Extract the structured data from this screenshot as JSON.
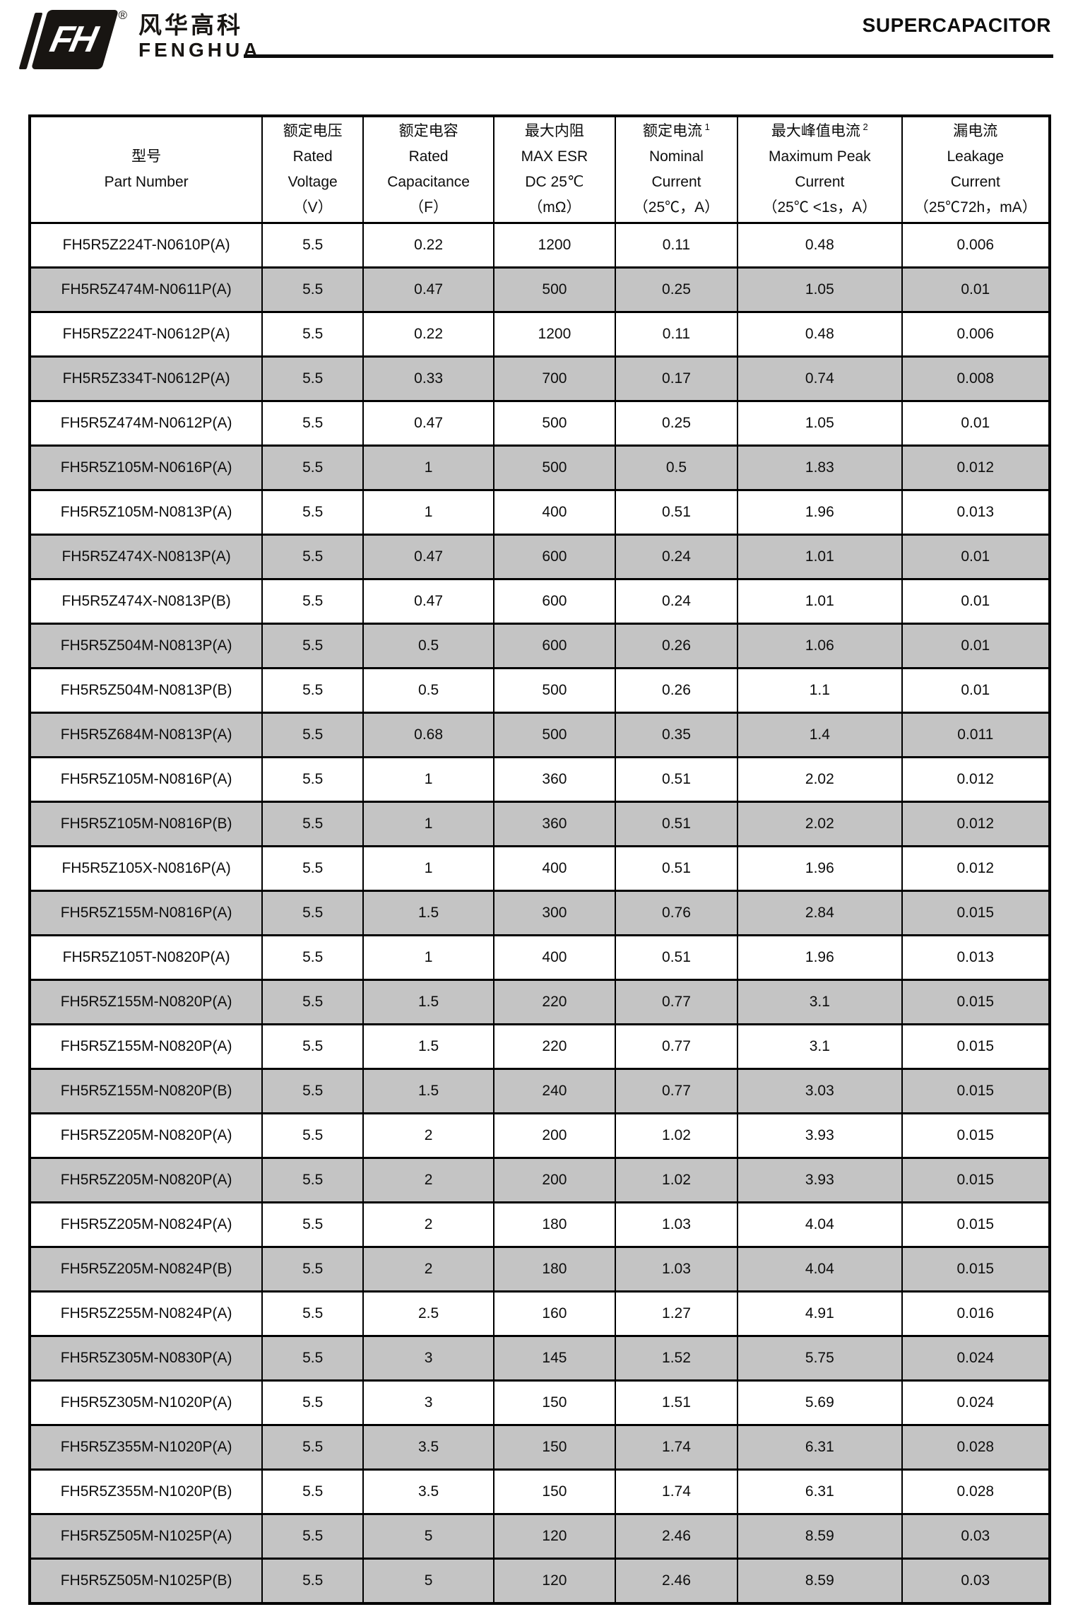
{
  "brand": {
    "mark": "FH",
    "registered": "®",
    "name_cn": "风华高科",
    "name_en": "FENGHUA"
  },
  "header": {
    "title": "SUPERCAPACITOR"
  },
  "colors": {
    "row_shade": "#c4c4c4",
    "border": "#000000",
    "logo": "#181512"
  },
  "table": {
    "columns": [
      {
        "lines": [
          "型号",
          "Part Number"
        ],
        "sup": ""
      },
      {
        "lines": [
          "额定电压",
          "Rated",
          "Voltage",
          "（V）"
        ],
        "sup": ""
      },
      {
        "lines": [
          "额定电容",
          "Rated",
          "Capacitance",
          "（F）"
        ],
        "sup": ""
      },
      {
        "lines": [
          "最大内阻",
          "MAX ESR",
          "DC 25℃",
          "（mΩ）"
        ],
        "sup": ""
      },
      {
        "lines": [
          "额定电流",
          "Nominal",
          "Current",
          "（25℃，A）"
        ],
        "sup": "1"
      },
      {
        "lines": [
          "最大峰值电流",
          "Maximum Peak",
          "Current",
          "（25℃ <1s，A）"
        ],
        "sup": "2"
      },
      {
        "lines": [
          "漏电流",
          "Leakage",
          "Current",
          "（25℃72h，mA）"
        ],
        "sup": ""
      }
    ],
    "rows": [
      {
        "shaded": false,
        "cells": [
          "FH5R5Z224T-N0610P(A)",
          "5.5",
          "0.22",
          "1200",
          "0.11",
          "0.48",
          "0.006"
        ]
      },
      {
        "shaded": true,
        "cells": [
          "FH5R5Z474M-N0611P(A)",
          "5.5",
          "0.47",
          "500",
          "0.25",
          "1.05",
          "0.01"
        ]
      },
      {
        "shaded": false,
        "cells": [
          "FH5R5Z224T-N0612P(A)",
          "5.5",
          "0.22",
          "1200",
          "0.11",
          "0.48",
          "0.006"
        ]
      },
      {
        "shaded": true,
        "cells": [
          "FH5R5Z334T-N0612P(A)",
          "5.5",
          "0.33",
          "700",
          "0.17",
          "0.74",
          "0.008"
        ]
      },
      {
        "shaded": false,
        "cells": [
          "FH5R5Z474M-N0612P(A)",
          "5.5",
          "0.47",
          "500",
          "0.25",
          "1.05",
          "0.01"
        ]
      },
      {
        "shaded": true,
        "cells": [
          "FH5R5Z105M-N0616P(A)",
          "5.5",
          "1",
          "500",
          "0.5",
          "1.83",
          "0.012"
        ]
      },
      {
        "shaded": false,
        "cells": [
          "FH5R5Z105M-N0813P(A)",
          "5.5",
          "1",
          "400",
          "0.51",
          "1.96",
          "0.013"
        ]
      },
      {
        "shaded": true,
        "cells": [
          "FH5R5Z474X-N0813P(A)",
          "5.5",
          "0.47",
          "600",
          "0.24",
          "1.01",
          "0.01"
        ]
      },
      {
        "shaded": false,
        "cells": [
          "FH5R5Z474X-N0813P(B)",
          "5.5",
          "0.47",
          "600",
          "0.24",
          "1.01",
          "0.01"
        ]
      },
      {
        "shaded": true,
        "cells": [
          "FH5R5Z504M-N0813P(A)",
          "5.5",
          "0.5",
          "600",
          "0.26",
          "1.06",
          "0.01"
        ]
      },
      {
        "shaded": false,
        "cells": [
          "FH5R5Z504M-N0813P(B)",
          "5.5",
          "0.5",
          "500",
          "0.26",
          "1.1",
          "0.01"
        ]
      },
      {
        "shaded": true,
        "cells": [
          "FH5R5Z684M-N0813P(A)",
          "5.5",
          "0.68",
          "500",
          "0.35",
          "1.4",
          "0.011"
        ]
      },
      {
        "shaded": false,
        "cells": [
          "FH5R5Z105M-N0816P(A)",
          "5.5",
          "1",
          "360",
          "0.51",
          "2.02",
          "0.012"
        ]
      },
      {
        "shaded": true,
        "cells": [
          "FH5R5Z105M-N0816P(B)",
          "5.5",
          "1",
          "360",
          "0.51",
          "2.02",
          "0.012"
        ]
      },
      {
        "shaded": false,
        "cells": [
          "FH5R5Z105X-N0816P(A)",
          "5.5",
          "1",
          "400",
          "0.51",
          "1.96",
          "0.012"
        ]
      },
      {
        "shaded": true,
        "cells": [
          "FH5R5Z155M-N0816P(A)",
          "5.5",
          "1.5",
          "300",
          "0.76",
          "2.84",
          "0.015"
        ]
      },
      {
        "shaded": false,
        "cells": [
          "FH5R5Z105T-N0820P(A)",
          "5.5",
          "1",
          "400",
          "0.51",
          "1.96",
          "0.013"
        ]
      },
      {
        "shaded": true,
        "cells": [
          "FH5R5Z155M-N0820P(A)",
          "5.5",
          "1.5",
          "220",
          "0.77",
          "3.1",
          "0.015"
        ]
      },
      {
        "shaded": false,
        "cells": [
          "FH5R5Z155M-N0820P(A)",
          "5.5",
          "1.5",
          "220",
          "0.77",
          "3.1",
          "0.015"
        ]
      },
      {
        "shaded": true,
        "cells": [
          "FH5R5Z155M-N0820P(B)",
          "5.5",
          "1.5",
          "240",
          "0.77",
          "3.03",
          "0.015"
        ]
      },
      {
        "shaded": false,
        "cells": [
          "FH5R5Z205M-N0820P(A)",
          "5.5",
          "2",
          "200",
          "1.02",
          "3.93",
          "0.015"
        ]
      },
      {
        "shaded": true,
        "cells": [
          "FH5R5Z205M-N0820P(A)",
          "5.5",
          "2",
          "200",
          "1.02",
          "3.93",
          "0.015"
        ]
      },
      {
        "shaded": false,
        "cells": [
          "FH5R5Z205M-N0824P(A)",
          "5.5",
          "2",
          "180",
          "1.03",
          "4.04",
          "0.015"
        ]
      },
      {
        "shaded": true,
        "cells": [
          "FH5R5Z205M-N0824P(B)",
          "5.5",
          "2",
          "180",
          "1.03",
          "4.04",
          "0.015"
        ]
      },
      {
        "shaded": false,
        "cells": [
          "FH5R5Z255M-N0824P(A)",
          "5.5",
          "2.5",
          "160",
          "1.27",
          "4.91",
          "0.016"
        ]
      },
      {
        "shaded": true,
        "cells": [
          "FH5R5Z305M-N0830P(A)",
          "5.5",
          "3",
          "145",
          "1.52",
          "5.75",
          "0.024"
        ]
      },
      {
        "shaded": false,
        "cells": [
          "FH5R5Z305M-N1020P(A)",
          "5.5",
          "3",
          "150",
          "1.51",
          "5.69",
          "0.024"
        ]
      },
      {
        "shaded": true,
        "cells": [
          "FH5R5Z355M-N1020P(A)",
          "5.5",
          "3.5",
          "150",
          "1.74",
          "6.31",
          "0.028"
        ]
      },
      {
        "shaded": false,
        "cells": [
          "FH5R5Z355M-N1020P(B)",
          "5.5",
          "3.5",
          "150",
          "1.74",
          "6.31",
          "0.028"
        ]
      },
      {
        "shaded": true,
        "cells": [
          "FH5R5Z505M-N1025P(A)",
          "5.5",
          "5",
          "120",
          "2.46",
          "8.59",
          "0.03"
        ]
      },
      {
        "shaded": true,
        "cells": [
          "FH5R5Z505M-N1025P(B)",
          "5.5",
          "5",
          "120",
          "2.46",
          "8.59",
          "0.03"
        ]
      }
    ]
  }
}
